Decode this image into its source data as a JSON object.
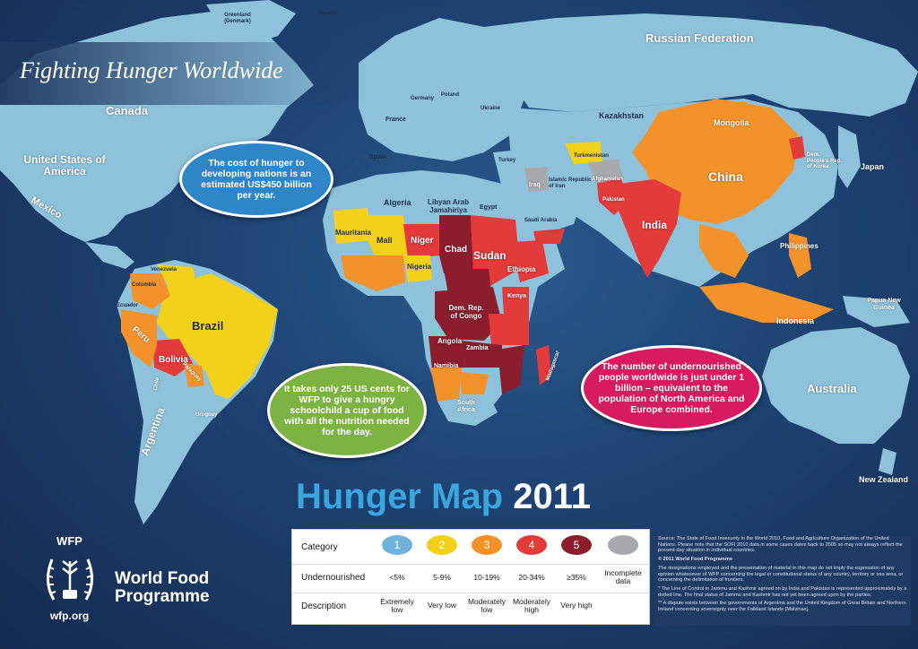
{
  "header": {
    "title": "Fighting Hunger Worldwide"
  },
  "map_title": {
    "part1": "Hunger Map",
    "part2": "2011"
  },
  "colors": {
    "ocean": "#1d4272",
    "land_default": "#8ec2db",
    "cat1": "#6fb3d9",
    "cat2": "#f3d11b",
    "cat3": "#f3922b",
    "cat4": "#e33a3a",
    "cat5": "#8b1d2c",
    "incomplete": "#a7a9ab",
    "title_blue": "#3aa6e0"
  },
  "countries": {
    "russia": "Russian Federation",
    "canada": "Canada",
    "usa": "United States of America",
    "mexico": "Mexico",
    "kazakhstan": "Kazakhstan",
    "mongolia": "Mongolia",
    "china": "China",
    "japan": "Japan",
    "india": "India",
    "philippines": "Philippines",
    "indonesia": "Indonesia",
    "papua": "Papua New Guinea",
    "australia": "Australia",
    "nz": "New Zealand",
    "brazil": "Brazil",
    "bolivia": "Bolivia",
    "peru": "Peru",
    "argentina": "Argentina",
    "chad": "Chad",
    "sudan": "Sudan",
    "niger": "Niger",
    "mali": "Mali",
    "mauritania": "Mauritania",
    "nigeria": "Nigeria",
    "ethiopia": "Ethiopia",
    "drc": "Dem. Rep. of Congo",
    "angola": "Angola",
    "zambia": "Zambia",
    "namibia": "Namibia",
    "southafrica": "South Africa",
    "madagascar": "Madagascar",
    "algeria": "Algeria",
    "libya": "Libyan Arab Jamahiriya",
    "egypt": "Egypt",
    "saudi": "Saudi Arabia",
    "iran": "Islamic Republic of Iran",
    "iraq": "Iraq",
    "afghanistan": "Afghanistan",
    "pakistan": "Pakistan",
    "turkey": "Turkey",
    "spain": "Spain",
    "france": "France",
    "germany": "Germany",
    "poland": "Poland",
    "ukraine": "Ukraine",
    "greenland": "Greenland (Denmark)",
    "iceland": "Iceland",
    "turkmenistan": "Turkmenistan",
    "kenya": "Kenya",
    "venezuela": "Venezuela",
    "colombia": "Colombia",
    "ecuador": "Ecuador",
    "paraguay": "Paraguay",
    "uruguay": "Uruguay",
    "chile": "Chile",
    "mongolia_korea": "Dem. People's Rep. of Korea"
  },
  "bubbles": {
    "cost": "The cost of hunger to developing nations is an estimated US$450 billion per year.",
    "cents": "It takes only 25 US cents for WFP to give a hungry schoolchild a cup of food with all the nutrition needed for the day.",
    "billion": "The number of undernourished people worldwide is just under 1 billion – equivalent to the population of North America and Europe combined."
  },
  "legend": {
    "row_labels": [
      "Category",
      "Undernourished",
      "Description"
    ],
    "categories": [
      "1",
      "2",
      "3",
      "4",
      "5",
      ""
    ],
    "undernourished": [
      "<5%",
      "5-9%",
      "10-19%",
      "20-34%",
      "≥35%",
      "Incomplete data"
    ],
    "description": [
      "Extremely low",
      "Very low",
      "Moderately low",
      "Moderately high",
      "Very high",
      ""
    ]
  },
  "notes": [
    "Source: The State of Food Insecurity in the World 2010, Food and Agriculture Organization of the United Nations. Please note that the SOFI 2010 data in some cases dates back to 2005 so may not always reflect the present-day situation in individual countries.",
    "© 2011 World Food Programme",
    "The designations employed and the presentation of material in this map do not imply the expression of any opinion whatsoever of WFP concerning the legal or constitutional status of any country, territory or sea area, or concerning the delimitation of frontiers.",
    "* The Line of Control in Jammu and Kashmir agreed on by India and Pakistan is represented approximately by a dotted line. The final status of Jammu and Kashmir has not yet been agreed upon by the parties.",
    "** A dispute exists between the governments of Argentina and the United Kingdom of Great Britain and Northern Ireland concerning sovereignty over the Falkland Islands (Malvinas)."
  ],
  "wfp": {
    "brand": "WFP",
    "name_line1": "World Food",
    "name_line2": "Programme",
    "url": "wfp.org"
  }
}
